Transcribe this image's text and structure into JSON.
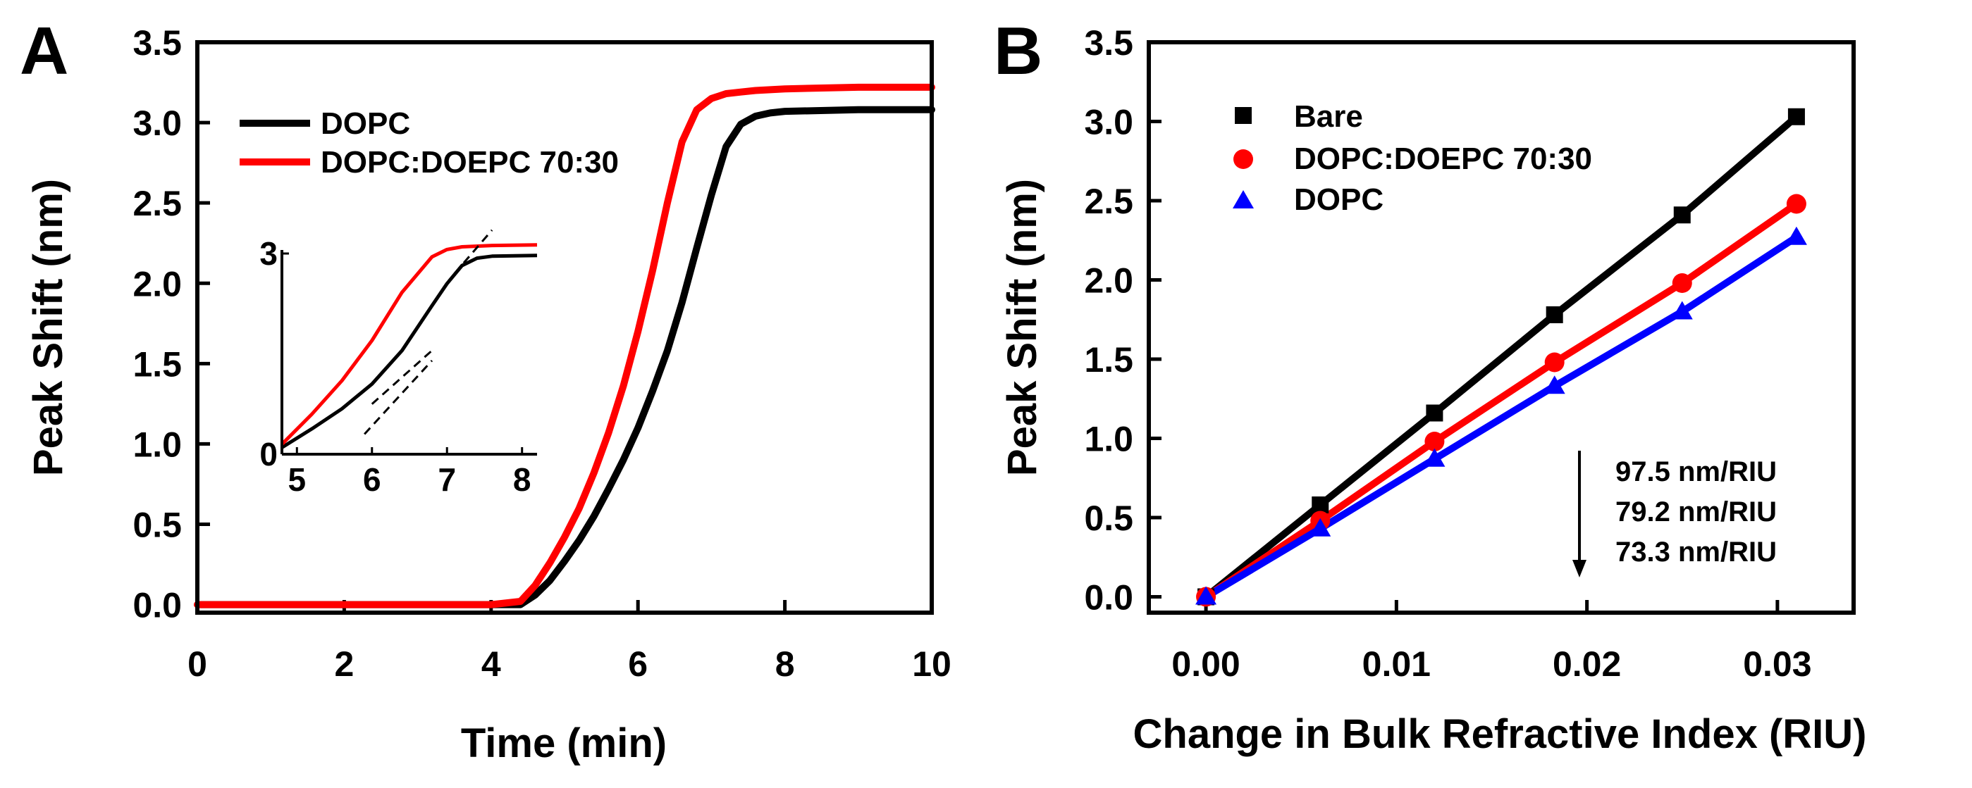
{
  "chart_data": [
    {
      "panel": "A",
      "type": "line",
      "title": "",
      "xlabel": "Time (min)",
      "ylabel": "Peak Shift (nm)",
      "xlim": [
        0,
        10
      ],
      "ylim": [
        -0.05,
        3.5
      ],
      "xticks": [
        0,
        2,
        4,
        6,
        8,
        10
      ],
      "yticks": [
        0.0,
        0.5,
        1.0,
        1.5,
        2.0,
        2.5,
        3.0,
        3.5
      ],
      "legend_position": "top-left",
      "series": [
        {
          "name": "DOPC",
          "color": "#000000",
          "x": [
            0,
            1,
            2,
            3,
            4,
            4.4,
            4.6,
            4.8,
            5.0,
            5.2,
            5.4,
            5.6,
            5.8,
            6.0,
            6.2,
            6.4,
            6.6,
            6.8,
            7.0,
            7.2,
            7.4,
            7.6,
            7.8,
            8.0,
            9.0,
            10.0
          ],
          "y": [
            0.0,
            0.0,
            0.0,
            0.0,
            0.0,
            0.0,
            0.06,
            0.15,
            0.27,
            0.4,
            0.55,
            0.72,
            0.9,
            1.1,
            1.33,
            1.58,
            1.88,
            2.22,
            2.55,
            2.85,
            2.99,
            3.04,
            3.06,
            3.07,
            3.08,
            3.08
          ]
        },
        {
          "name": "DOPC:DOEPC 70:30",
          "color": "#ff0000",
          "x": [
            0,
            1,
            2,
            3,
            4,
            4.4,
            4.6,
            4.8,
            5.0,
            5.2,
            5.4,
            5.6,
            5.8,
            6.0,
            6.2,
            6.4,
            6.6,
            6.8,
            7.0,
            7.2,
            7.4,
            7.6,
            8.0,
            9.0,
            10.0
          ],
          "y": [
            0.0,
            0.0,
            0.0,
            0.0,
            0.0,
            0.02,
            0.12,
            0.26,
            0.42,
            0.6,
            0.82,
            1.07,
            1.36,
            1.7,
            2.08,
            2.5,
            2.88,
            3.08,
            3.15,
            3.18,
            3.19,
            3.2,
            3.21,
            3.22,
            3.22
          ]
        }
      ],
      "inset": {
        "xlim": [
          4.8,
          8.2
        ],
        "ylim": [
          0,
          3
        ],
        "xticks": [
          5,
          6,
          7,
          8
        ],
        "yticks": [
          0,
          3
        ],
        "series": [
          {
            "name": "DOPC",
            "color": "#000000",
            "x": [
              4.8,
              5.2,
              5.6,
              6.0,
              6.4,
              6.8,
              7.0,
              7.2,
              7.4,
              7.6,
              8.2
            ],
            "y": [
              0.1,
              0.38,
              0.68,
              1.05,
              1.55,
              2.22,
              2.55,
              2.82,
              2.93,
              2.96,
              2.97
            ]
          },
          {
            "name": "DOPC:DOEPC 70:30",
            "color": "#ff0000",
            "x": [
              4.8,
              5.2,
              5.6,
              6.0,
              6.4,
              6.8,
              7.0,
              7.2,
              7.6,
              8.2
            ],
            "y": [
              0.15,
              0.6,
              1.1,
              1.7,
              2.42,
              2.95,
              3.06,
              3.1,
              3.12,
              3.13
            ]
          }
        ],
        "tangent_lines": [
          {
            "x": [
              6.0,
              6.8
            ],
            "y": [
              0.75,
              1.55
            ]
          },
          {
            "x": [
              5.9,
              6.8
            ],
            "y": [
              0.3,
              1.4
            ]
          },
          {
            "x": [
              7.1,
              7.6
            ],
            "y": [
              2.7,
              3.35
            ]
          }
        ]
      }
    },
    {
      "panel": "B",
      "type": "scatter",
      "title": "",
      "xlabel": "Change in Bulk Refractive Index (RIU)",
      "ylabel": "Peak Shift (nm)",
      "xlim": [
        -0.003,
        0.034
      ],
      "ylim": [
        -0.1,
        3.5
      ],
      "xticks": [
        0.0,
        0.01,
        0.02,
        0.03
      ],
      "yticks": [
        0.0,
        0.5,
        1.0,
        1.5,
        2.0,
        2.5,
        3.0,
        3.5
      ],
      "legend_position": "top-left",
      "series": [
        {
          "name": "Bare",
          "marker": "square",
          "color": "#000000",
          "x": [
            0.0,
            0.006,
            0.012,
            0.0183,
            0.025,
            0.031
          ],
          "y": [
            0.0,
            0.58,
            1.16,
            1.78,
            2.41,
            3.03
          ],
          "fit_slope": "97.5 nm/RIU"
        },
        {
          "name": "DOPC:DOEPC 70:30",
          "marker": "circle",
          "color": "#ff0000",
          "x": [
            0.0,
            0.006,
            0.012,
            0.0183,
            0.025,
            0.031
          ],
          "y": [
            0.0,
            0.48,
            0.98,
            1.48,
            1.98,
            2.48
          ],
          "fit_slope": "79.2 nm/RIU"
        },
        {
          "name": "DOPC",
          "marker": "triangle",
          "color": "#0000ff",
          "x": [
            0.0,
            0.006,
            0.012,
            0.0183,
            0.025,
            0.031
          ],
          "y": [
            0.0,
            0.43,
            0.87,
            1.33,
            1.8,
            2.27
          ],
          "fit_slope": "73.3 nm/RIU"
        }
      ],
      "annotations": [
        "97.5 nm/RIU",
        "79.2 nm/RIU",
        "73.3 nm/RIU"
      ]
    }
  ]
}
